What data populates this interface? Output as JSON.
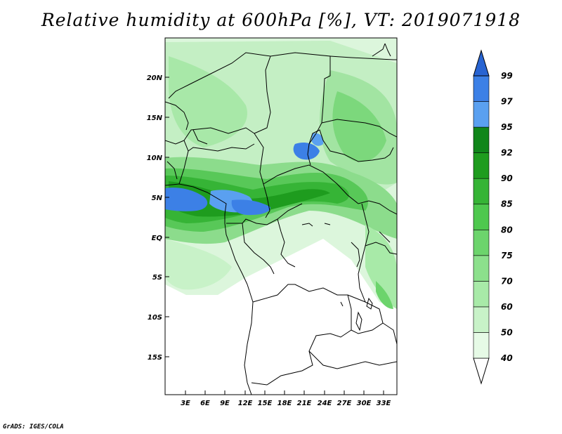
{
  "title": "Relative humidity at 600hPa [%], VT: 2019071918",
  "credit": "GrADS: IGES/COLA",
  "map": {
    "lat_labels": [
      "20N",
      "15N",
      "10N",
      "5N",
      "EQ",
      "5S",
      "10S",
      "15S"
    ],
    "lon_labels": [
      "3E",
      "6E",
      "9E",
      "12E",
      "15E",
      "18E",
      "21E",
      "24E",
      "27E",
      "30E",
      "33E"
    ]
  },
  "colorbar": {
    "levels": [
      "40",
      "50",
      "60",
      "70",
      "75",
      "80",
      "85",
      "90",
      "92",
      "95",
      "97",
      "99"
    ],
    "colors": [
      "#ffffff",
      "#e6fae6",
      "#c8f2c8",
      "#a8eaa8",
      "#8ce08c",
      "#6cd46c",
      "#4ec84e",
      "#36b436",
      "#1e9c1e",
      "#10861a",
      "#5aa0f0",
      "#3c80e6",
      "#2864d2"
    ]
  }
}
